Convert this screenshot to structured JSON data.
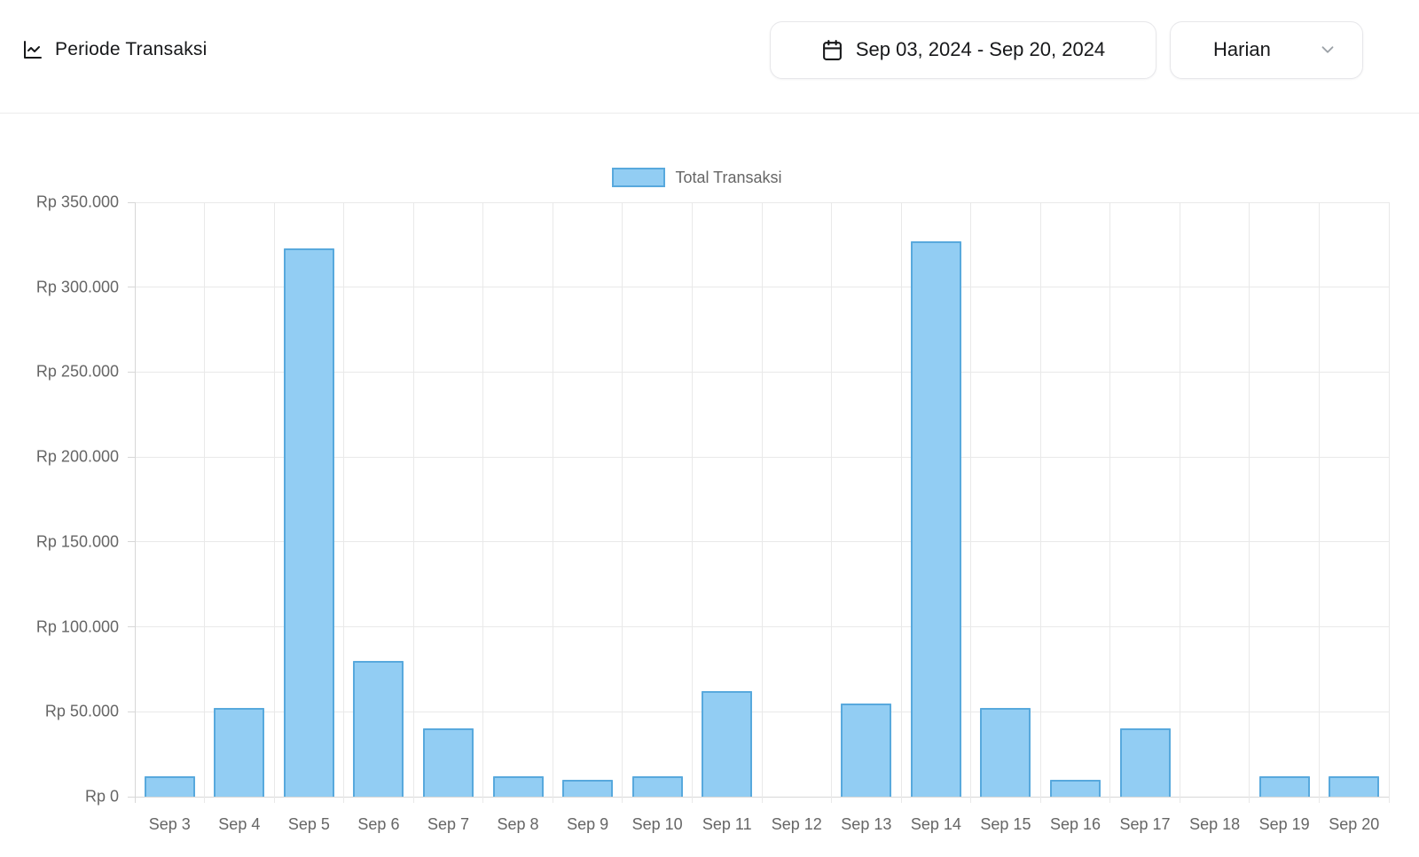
{
  "header": {
    "title": "Periode Transaksi",
    "title_icon": "chart-line-icon",
    "date_range_value": "Sep 03, 2024 - Sep 20, 2024",
    "date_range_icon": "calendar-icon",
    "period_value": "Harian",
    "period_icon": "chevron-down-icon"
  },
  "chart_data": {
    "type": "bar",
    "title": "",
    "legend": {
      "position": "top",
      "label": "Total Transaksi"
    },
    "categories": [
      "Sep 3",
      "Sep 4",
      "Sep 5",
      "Sep 6",
      "Sep 7",
      "Sep 8",
      "Sep 9",
      "Sep 10",
      "Sep 11",
      "Sep 12",
      "Sep 13",
      "Sep 14",
      "Sep 15",
      "Sep 16",
      "Sep 17",
      "Sep 18",
      "Sep 19",
      "Sep 20"
    ],
    "series": [
      {
        "name": "Total Transaksi",
        "values": [
          12000,
          52000,
          323000,
          80000,
          40000,
          12000,
          10000,
          12000,
          62000,
          0,
          55000,
          327000,
          52000,
          10000,
          40000,
          0,
          12000,
          12000
        ]
      }
    ],
    "xlabel": "",
    "ylabel": "",
    "ylim": [
      0,
      350000
    ],
    "grid": true,
    "y_ticks": [
      {
        "value": 0,
        "label": "Rp 0"
      },
      {
        "value": 50000,
        "label": "Rp 50.000"
      },
      {
        "value": 100000,
        "label": "Rp 100.000"
      },
      {
        "value": 150000,
        "label": "Rp 150.000"
      },
      {
        "value": 200000,
        "label": "Rp 200.000"
      },
      {
        "value": 250000,
        "label": "Rp 250.000"
      },
      {
        "value": 300000,
        "label": "Rp 300.000"
      },
      {
        "value": 350000,
        "label": "Rp 350.000"
      }
    ],
    "colors": {
      "bar_fill": "#92cdf3",
      "bar_border": "#58a9dd",
      "grid_line": "#e9e9e9",
      "axis_line": "#d7d7d7",
      "tick_text": "#666666"
    }
  },
  "ui_colors": {
    "title_text": "#17181a",
    "button_border": "#e7e7ea",
    "divider": "#ececec",
    "chevron": "#9aa0a6"
  }
}
